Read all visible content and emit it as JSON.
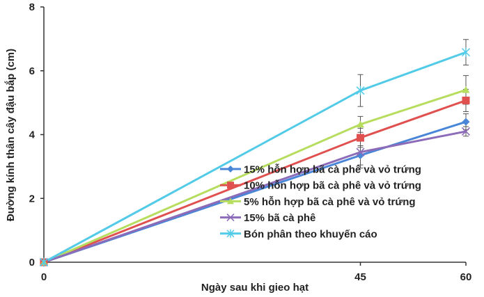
{
  "chart_data": {
    "type": "line",
    "x": [
      0,
      45,
      60
    ],
    "xlim": [
      0,
      60
    ],
    "ylim": [
      0,
      8
    ],
    "xticks": [
      "0",
      "45",
      "60"
    ],
    "yticks": [
      "0",
      "2",
      "4",
      "6",
      "8"
    ],
    "xlabel": "Ngày sau khi gieo hạt",
    "ylabel": "Đường kính thân cây đậu bắp (cm)",
    "grid": false,
    "legend_position": "bottom-right",
    "series": [
      {
        "name": "15% hỗn hợp bã cà phê và vỏ trứng",
        "values": [
          0,
          3.35,
          4.4
        ],
        "errors": [
          0,
          0.3,
          0.25
        ],
        "color": "#4a86d8",
        "marker": "diamond"
      },
      {
        "name": "10% hỗn hợp bã cà phê và vỏ trứng",
        "values": [
          0,
          3.9,
          5.07
        ],
        "errors": [
          0,
          0.3,
          0.35
        ],
        "color": "#e0504f",
        "marker": "square"
      },
      {
        "name": "5% hỗn hợp bã cà phê và vỏ trứng",
        "values": [
          0,
          4.32,
          5.4
        ],
        "errors": [
          0,
          0.25,
          0.45
        ],
        "color": "#b7dd5f",
        "marker": "triangle"
      },
      {
        "name": "15% bã cà phê",
        "values": [
          0,
          3.45,
          4.1
        ],
        "errors": [
          0,
          0.5,
          0.15
        ],
        "color": "#8c6bb8",
        "marker": "x"
      },
      {
        "name": "Bón phân theo khuyến cáo",
        "values": [
          0,
          5.38,
          6.58
        ],
        "errors": [
          0,
          0.5,
          0.4
        ],
        "color": "#52cbe8",
        "marker": "star"
      }
    ]
  }
}
